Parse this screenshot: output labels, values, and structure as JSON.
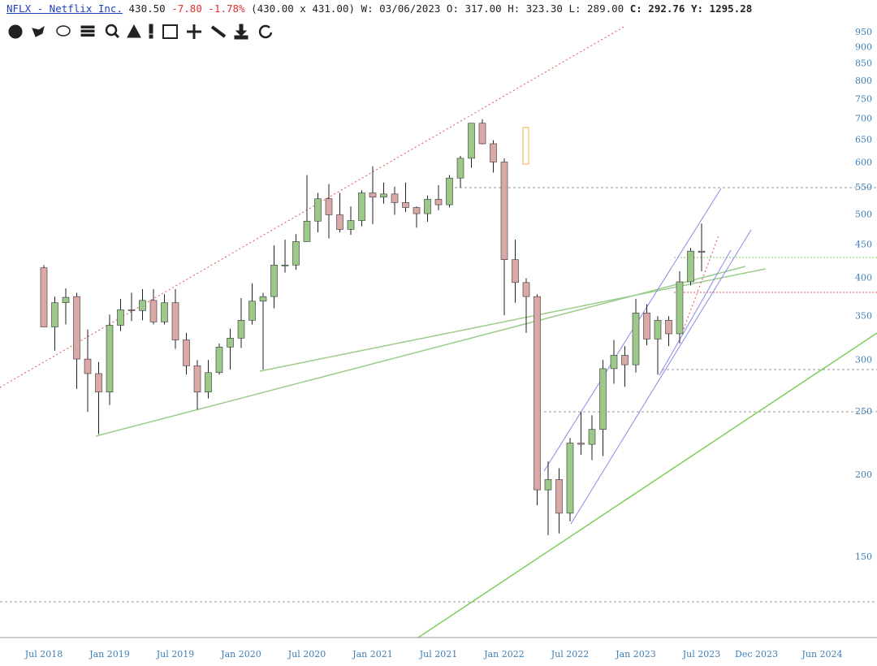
{
  "header": {
    "symbol": "NFLX - Netflix Inc.",
    "last": "430.50",
    "change": "-7.80",
    "change_pct": "-1.78%",
    "bid_ask": "(430.00 x 431.00)",
    "date": "W: 03/06/2023",
    "open": "O: 317.00",
    "high": "H: 323.30",
    "low": "L: 289.00",
    "close": "C: 292.76",
    "year": "Y: 1295.28"
  },
  "chart_data": {
    "type": "candlestick",
    "log_scale": true,
    "up_color": "#9cc98a",
    "down_color": "#dba8a8",
    "x": [
      "2018-07",
      "2018-08",
      "2018-09",
      "2018-10",
      "2018-11",
      "2018-12",
      "2019-01",
      "2019-02",
      "2019-03",
      "2019-04",
      "2019-05",
      "2019-06",
      "2019-07",
      "2019-08",
      "2019-09",
      "2019-10",
      "2019-11",
      "2019-12",
      "2020-01",
      "2020-02",
      "2020-03",
      "2020-04",
      "2020-05",
      "2020-06",
      "2020-07",
      "2020-08",
      "2020-09",
      "2020-10",
      "2020-11",
      "2020-12",
      "2021-01",
      "2021-02",
      "2021-03",
      "2021-04",
      "2021-05",
      "2021-06",
      "2021-07",
      "2021-08",
      "2021-09",
      "2021-10",
      "2021-11",
      "2021-12",
      "2022-01",
      "2022-02",
      "2022-03",
      "2022-04",
      "2022-05",
      "2022-06",
      "2022-07",
      "2022-08",
      "2022-09",
      "2022-10",
      "2022-11",
      "2022-12",
      "2023-01",
      "2023-02",
      "2023-03",
      "2023-04",
      "2023-05",
      "2023-06",
      "2023-07"
    ],
    "open": [
      415,
      337,
      367,
      375,
      301,
      286,
      268,
      339,
      358,
      357,
      370,
      343,
      367,
      322,
      294,
      268,
      287,
      314,
      324,
      345,
      369,
      375,
      419,
      419,
      455,
      489,
      529,
      500,
      475,
      490,
      540,
      532,
      538,
      522,
      513,
      502,
      528,
      518,
      569,
      610,
      690,
      642,
      602,
      427,
      394,
      375,
      190,
      197,
      175,
      224,
      223,
      235,
      291,
      305,
      295,
      354,
      323,
      345,
      329,
      395,
      440
    ],
    "high": [
      419,
      375,
      386,
      380,
      334,
      298,
      352,
      372,
      380,
      385,
      385,
      378,
      385,
      330,
      300,
      300,
      318,
      335,
      373,
      393,
      380,
      449,
      458,
      467,
      575,
      540,
      557,
      540,
      515,
      545,
      593,
      560,
      552,
      560,
      515,
      535,
      555,
      575,
      615,
      690,
      700,
      650,
      610,
      458,
      400,
      378,
      210,
      205,
      228,
      250,
      247,
      300,
      322,
      315,
      372,
      365,
      350,
      350,
      410,
      445,
      485
    ],
    "low": [
      338,
      310,
      340,
      271,
      250,
      231,
      256,
      332,
      344,
      345,
      340,
      340,
      312,
      285,
      252,
      262,
      285,
      290,
      313,
      340,
      290,
      360,
      408,
      412,
      455,
      470,
      460,
      470,
      466,
      480,
      484,
      520,
      500,
      505,
      478,
      488,
      508,
      513,
      550,
      590,
      640,
      580,
      351,
      367,
      330,
      180,
      162,
      163,
      170,
      215,
      211,
      214,
      276,
      273,
      287,
      316,
      285,
      315,
      318,
      390,
      410
    ],
    "close": [
      337,
      367,
      374,
      301,
      286,
      268,
      339,
      358,
      357,
      370,
      343,
      367,
      322,
      294,
      268,
      287,
      314,
      324,
      345,
      369,
      375,
      419,
      419,
      455,
      489,
      529,
      500,
      475,
      490,
      540,
      532,
      538,
      522,
      513,
      502,
      528,
      518,
      569,
      610,
      690,
      642,
      602,
      427,
      394,
      375,
      190,
      197,
      175,
      224,
      223,
      235,
      291,
      305,
      295,
      354,
      323,
      345,
      329,
      395,
      440,
      438
    ],
    "xlim": [
      "2018-03",
      "2024-11"
    ],
    "xticks": [
      {
        "value": "2018-07",
        "label": "Jul 2018"
      },
      {
        "value": "2019-01",
        "label": "Jan 2019"
      },
      {
        "value": "2019-07",
        "label": "Jul 2019"
      },
      {
        "value": "2020-01",
        "label": "Jan 2020"
      },
      {
        "value": "2020-07",
        "label": "Jul 2020"
      },
      {
        "value": "2021-01",
        "label": "Jan 2021"
      },
      {
        "value": "2021-07",
        "label": "Jul 2021"
      },
      {
        "value": "2022-01",
        "label": "Jan 2022"
      },
      {
        "value": "2022-07",
        "label": "Jul 2022"
      },
      {
        "value": "2023-01",
        "label": "Jan 2023"
      },
      {
        "value": "2023-07",
        "label": "Jul 2023"
      },
      {
        "value": "2023-12",
        "label": "Dec 2023"
      },
      {
        "value": "2024-06",
        "label": "Jun 2024"
      }
    ],
    "ylim": [
      113,
      977
    ],
    "yticks": [
      150,
      200,
      250,
      300,
      350,
      400,
      450,
      500,
      550,
      600,
      650,
      700,
      750,
      800,
      850,
      900,
      950
    ]
  }
}
